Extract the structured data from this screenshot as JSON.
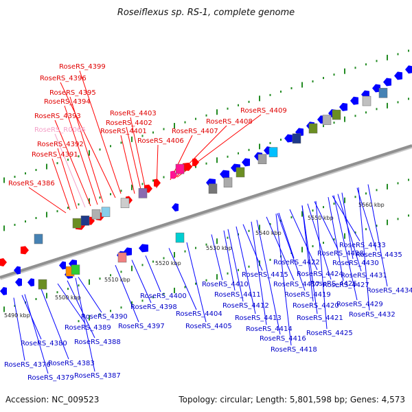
{
  "title": "Roseiflexus sp. RS-1, complete genome",
  "footer": {
    "accession": "Accession: NC_009523",
    "summary": "Topology: circular; Length: 5,801,598 bp; Genes: 4,573"
  },
  "colors": {
    "forward": "#ff0000",
    "reverse": "#0000ff",
    "rna": "#ff1493",
    "backbone": "#909090",
    "tick": "#228b22"
  },
  "kbp_labels": [
    "5490 kbp",
    "5500 kbp",
    "5510 kbp",
    "5520 kbp",
    "5530 kbp",
    "5540 kbp",
    "5550 kbp",
    "5560 kbp"
  ],
  "labels_top": [
    {
      "text": "RoseRS_4399",
      "color": "red"
    },
    {
      "text": "RoseRS_4396",
      "color": "red"
    },
    {
      "text": "RoseRS_4395",
      "color": "red"
    },
    {
      "text": "RoseRS_4394",
      "color": "red"
    },
    {
      "text": "RoseRS_4393",
      "color": "red"
    },
    {
      "text": "RoseRS_R0066",
      "color": "pink"
    },
    {
      "text": "RoseRS_4392",
      "color": "red"
    },
    {
      "text": "RoseRS_4391",
      "color": "red"
    },
    {
      "text": "RoseRS_4386",
      "color": "red"
    },
    {
      "text": "RoseRS_4403",
      "color": "red"
    },
    {
      "text": "RoseRS_4402",
      "color": "red"
    },
    {
      "text": "RoseRS_4401",
      "color": "red"
    },
    {
      "text": "RoseRS_4406",
      "color": "red"
    },
    {
      "text": "RoseRS_4407",
      "color": "red"
    },
    {
      "text": "RoseRS_4408",
      "color": "red"
    },
    {
      "text": "RoseRS_4409",
      "color": "red"
    }
  ],
  "labels_bottom": [
    {
      "text": "RoseRS_4433"
    },
    {
      "text": "RoseRS_4428"
    },
    {
      "text": "RoseRS_4435"
    },
    {
      "text": "RoseRS_4422"
    },
    {
      "text": "RoseRS_4430"
    },
    {
      "text": "RoseRS_4424"
    },
    {
      "text": "RoseRS_4431"
    },
    {
      "text": "RoseRS_4415"
    },
    {
      "text": "RoseRS_4427"
    },
    {
      "text": "RoseRS_4410"
    },
    {
      "text": "RoseRS_4417"
    },
    {
      "text": "RoseRS_4426"
    },
    {
      "text": "RoseRS_4434"
    },
    {
      "text": "RoseRS_4400"
    },
    {
      "text": "RoseRS_4411"
    },
    {
      "text": "RoseRS_4419"
    },
    {
      "text": "RoseRS_4429"
    },
    {
      "text": "RoseRS_4398"
    },
    {
      "text": "RoseRS_4412"
    },
    {
      "text": "RoseRS_4420"
    },
    {
      "text": "RoseRS_4404"
    },
    {
      "text": "RoseRS_4390"
    },
    {
      "text": "RoseRS_4413"
    },
    {
      "text": "RoseRS_4421"
    },
    {
      "text": "RoseRS_4432"
    },
    {
      "text": "RoseRS_4389"
    },
    {
      "text": "RoseRS_4397"
    },
    {
      "text": "RoseRS_4405"
    },
    {
      "text": "RoseRS_4414"
    },
    {
      "text": "RoseRS_4425"
    },
    {
      "text": "RoseRS_4388"
    },
    {
      "text": "RoseRS_4416"
    },
    {
      "text": "RoseRS_4380"
    },
    {
      "text": "RoseRS_4418"
    },
    {
      "text": "RoseRS_4376"
    },
    {
      "text": "RoseRS_4383"
    },
    {
      "text": "RoseRS_4379"
    },
    {
      "text": "RoseRS_4387"
    }
  ]
}
